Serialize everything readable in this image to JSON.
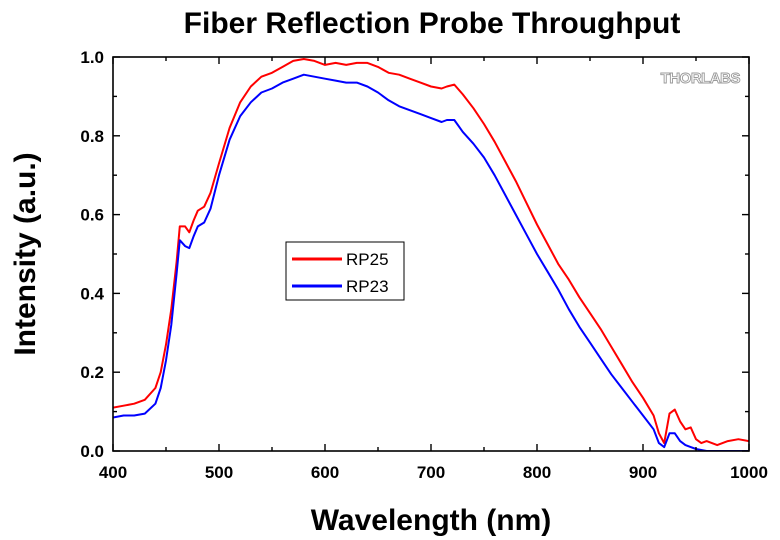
{
  "chart_data": {
    "type": "line",
    "title": "Fiber Reflection Probe Throughput",
    "xlabel": "Wavelength (nm)",
    "ylabel": "Intensity (a.u.)",
    "xlim": [
      400,
      1000
    ],
    "ylim": [
      0,
      1.0
    ],
    "x_ticks": [
      "400",
      "500",
      "600",
      "700",
      "800",
      "900",
      "1000"
    ],
    "y_ticks": [
      "0.0",
      "0.2",
      "0.4",
      "0.6",
      "0.8",
      "1.0"
    ],
    "grid": false,
    "legend_placement": "center-left",
    "watermark": "THORLABS",
    "series": [
      {
        "name": "RP25",
        "color": "#ff0000",
        "points": [
          [
            400,
            0.11
          ],
          [
            410,
            0.115
          ],
          [
            420,
            0.12
          ],
          [
            430,
            0.13
          ],
          [
            440,
            0.16
          ],
          [
            445,
            0.2
          ],
          [
            450,
            0.27
          ],
          [
            455,
            0.36
          ],
          [
            460,
            0.48
          ],
          [
            463,
            0.57
          ],
          [
            468,
            0.57
          ],
          [
            472,
            0.555
          ],
          [
            476,
            0.585
          ],
          [
            480,
            0.61
          ],
          [
            486,
            0.62
          ],
          [
            492,
            0.655
          ],
          [
            500,
            0.73
          ],
          [
            510,
            0.82
          ],
          [
            520,
            0.885
          ],
          [
            530,
            0.925
          ],
          [
            540,
            0.95
          ],
          [
            550,
            0.96
          ],
          [
            560,
            0.975
          ],
          [
            570,
            0.99
          ],
          [
            580,
            0.995
          ],
          [
            590,
            0.99
          ],
          [
            600,
            0.98
          ],
          [
            610,
            0.985
          ],
          [
            620,
            0.98
          ],
          [
            630,
            0.985
          ],
          [
            640,
            0.985
          ],
          [
            650,
            0.975
          ],
          [
            660,
            0.96
          ],
          [
            670,
            0.955
          ],
          [
            680,
            0.945
          ],
          [
            690,
            0.935
          ],
          [
            700,
            0.925
          ],
          [
            710,
            0.92
          ],
          [
            715,
            0.925
          ],
          [
            722,
            0.93
          ],
          [
            730,
            0.905
          ],
          [
            740,
            0.87
          ],
          [
            750,
            0.83
          ],
          [
            760,
            0.785
          ],
          [
            770,
            0.735
          ],
          [
            780,
            0.685
          ],
          [
            790,
            0.63
          ],
          [
            800,
            0.575
          ],
          [
            810,
            0.525
          ],
          [
            820,
            0.475
          ],
          [
            830,
            0.435
          ],
          [
            840,
            0.39
          ],
          [
            850,
            0.35
          ],
          [
            860,
            0.31
          ],
          [
            870,
            0.265
          ],
          [
            880,
            0.22
          ],
          [
            890,
            0.175
          ],
          [
            900,
            0.135
          ],
          [
            910,
            0.09
          ],
          [
            915,
            0.045
          ],
          [
            920,
            0.02
          ],
          [
            925,
            0.095
          ],
          [
            930,
            0.105
          ],
          [
            935,
            0.075
          ],
          [
            940,
            0.055
          ],
          [
            945,
            0.06
          ],
          [
            950,
            0.03
          ],
          [
            955,
            0.02
          ],
          [
            960,
            0.025
          ],
          [
            970,
            0.015
          ],
          [
            980,
            0.025
          ],
          [
            990,
            0.03
          ],
          [
            1000,
            0.025
          ]
        ]
      },
      {
        "name": "RP23",
        "color": "#0000ff",
        "points": [
          [
            400,
            0.085
          ],
          [
            410,
            0.09
          ],
          [
            420,
            0.09
          ],
          [
            430,
            0.095
          ],
          [
            440,
            0.12
          ],
          [
            445,
            0.16
          ],
          [
            450,
            0.23
          ],
          [
            455,
            0.32
          ],
          [
            460,
            0.45
          ],
          [
            463,
            0.535
          ],
          [
            468,
            0.52
          ],
          [
            472,
            0.515
          ],
          [
            476,
            0.545
          ],
          [
            480,
            0.57
          ],
          [
            486,
            0.58
          ],
          [
            492,
            0.615
          ],
          [
            500,
            0.7
          ],
          [
            510,
            0.79
          ],
          [
            520,
            0.85
          ],
          [
            530,
            0.885
          ],
          [
            540,
            0.91
          ],
          [
            550,
            0.92
          ],
          [
            560,
            0.935
          ],
          [
            570,
            0.945
          ],
          [
            580,
            0.955
          ],
          [
            590,
            0.95
          ],
          [
            600,
            0.945
          ],
          [
            610,
            0.94
          ],
          [
            620,
            0.935
          ],
          [
            630,
            0.935
          ],
          [
            640,
            0.925
          ],
          [
            650,
            0.91
          ],
          [
            660,
            0.89
          ],
          [
            670,
            0.875
          ],
          [
            680,
            0.865
          ],
          [
            690,
            0.855
          ],
          [
            700,
            0.845
          ],
          [
            710,
            0.835
          ],
          [
            715,
            0.84
          ],
          [
            722,
            0.84
          ],
          [
            730,
            0.81
          ],
          [
            740,
            0.78
          ],
          [
            750,
            0.745
          ],
          [
            760,
            0.7
          ],
          [
            770,
            0.65
          ],
          [
            780,
            0.6
          ],
          [
            790,
            0.55
          ],
          [
            800,
            0.5
          ],
          [
            810,
            0.455
          ],
          [
            820,
            0.41
          ],
          [
            830,
            0.36
          ],
          [
            840,
            0.315
          ],
          [
            850,
            0.275
          ],
          [
            860,
            0.235
          ],
          [
            870,
            0.195
          ],
          [
            880,
            0.16
          ],
          [
            890,
            0.125
          ],
          [
            900,
            0.09
          ],
          [
            910,
            0.055
          ],
          [
            915,
            0.02
          ],
          [
            920,
            0.01
          ],
          [
            925,
            0.045
          ],
          [
            930,
            0.045
          ],
          [
            935,
            0.025
          ],
          [
            940,
            0.015
          ],
          [
            945,
            0.01
          ],
          [
            950,
            0.005
          ],
          [
            960,
            0.0
          ],
          [
            970,
            0.0
          ],
          [
            980,
            0.0
          ],
          [
            990,
            0.0
          ],
          [
            1000,
            0.0
          ]
        ]
      }
    ]
  }
}
